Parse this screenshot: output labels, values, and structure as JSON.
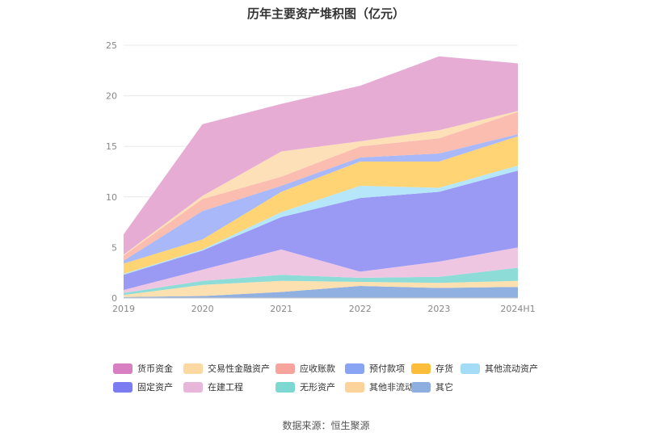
{
  "chart_data": {
    "type": "area",
    "title": "历年主要资产堆积图（亿元）",
    "xlabel": "",
    "ylabel": "",
    "categories": [
      "2019",
      "2020",
      "2021",
      "2022",
      "2023",
      "2024H1"
    ],
    "ylim": [
      0,
      25
    ],
    "yticks": [
      "0",
      "5",
      "10",
      "15",
      "20",
      "25"
    ],
    "grid": true,
    "legend_position": "bottom",
    "series": [
      {
        "name": "其它",
        "color": "#8fb0e0",
        "values": [
          0.1,
          0.2,
          0.6,
          1.2,
          1.0,
          1.1
        ]
      },
      {
        "name": "其他非流动资产",
        "color": "#fde0b0",
        "values": [
          0.2,
          1.1,
          1.1,
          0.4,
          0.5,
          0.6
        ]
      },
      {
        "name": "无形资产",
        "color": "#8edcd8",
        "values": [
          0.2,
          0.4,
          0.6,
          0.4,
          0.6,
          1.3
        ]
      },
      {
        "name": "在建工程",
        "color": "#eec6e2",
        "values": [
          0.3,
          1.1,
          2.5,
          0.6,
          1.5,
          2.0
        ]
      },
      {
        "name": "固定资产",
        "color": "#9a9af5",
        "values": [
          1.5,
          1.9,
          3.2,
          7.3,
          6.9,
          7.6
        ]
      },
      {
        "name": "其他流动资产",
        "color": "#b5e6fa",
        "values": [
          0.1,
          0.1,
          0.5,
          1.2,
          0.4,
          0.5
        ]
      },
      {
        "name": "存货",
        "color": "#ffd474",
        "values": [
          1.0,
          1.0,
          2.0,
          2.4,
          2.6,
          2.9
        ]
      },
      {
        "name": "预付款项",
        "color": "#a8b8f8",
        "values": [
          0.3,
          2.8,
          0.6,
          0.4,
          0.8,
          0.2
        ]
      },
      {
        "name": "应收账款",
        "color": "#fbbdb0",
        "values": [
          0.5,
          1.2,
          0.9,
          1.1,
          1.5,
          2.2
        ]
      },
      {
        "name": "交易性金融资产",
        "color": "#fde0b8",
        "values": [
          0.1,
          0.3,
          2.5,
          0.5,
          0.8,
          0.1
        ]
      },
      {
        "name": "货币资金",
        "color": "#e6acd4",
        "values": [
          2.0,
          7.1,
          4.7,
          5.5,
          7.3,
          4.7
        ]
      }
    ],
    "legend_order": [
      "货币资金",
      "交易性金融资产",
      "应收账款",
      "预付款项",
      "存货",
      "其他流动资产",
      "固定资产",
      "在建工程",
      "无形资产",
      "其他非流动资产",
      "其它"
    ],
    "legend_colors": {
      "货币资金": "#d77fc0",
      "交易性金融资产": "#fbd9a0",
      "应收账款": "#f7a59c",
      "预付款项": "#8aa4f5",
      "存货": "#fbbd3a",
      "其他流动资产": "#a4dcf7",
      "固定资产": "#7b7bf2",
      "在建工程": "#e8b6d8",
      "无形资产": "#7dd8d2",
      "其他非流动资产": "#fdd39a",
      "其它": "#8daedf"
    }
  },
  "source_text": "数据来源：恒生聚源"
}
